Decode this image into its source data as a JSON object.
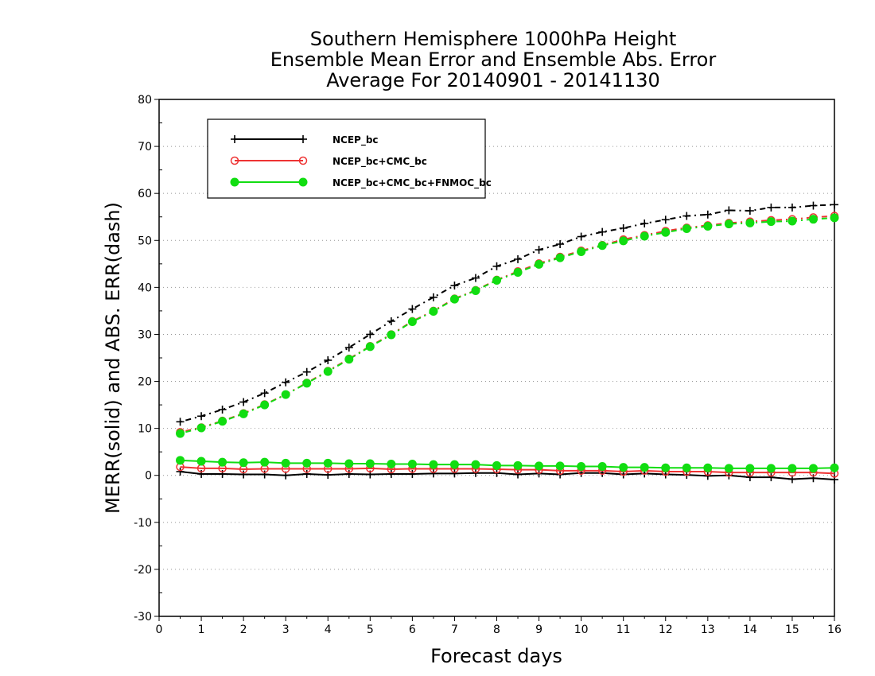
{
  "chart_data": {
    "type": "line",
    "title": [
      "Southern Hemisphere 1000hPa Height",
      "Ensemble Mean Error and Ensemble Abs. Error",
      "Average For 20140901 - 20141130"
    ],
    "xlabel": "Forecast days",
    "ylabel": "MERR(solid) and ABS. ERR(dash)",
    "xlim": [
      0,
      16
    ],
    "ylim": [
      -30,
      80
    ],
    "xticks": [
      0,
      1,
      2,
      3,
      4,
      5,
      6,
      7,
      8,
      9,
      10,
      11,
      12,
      13,
      14,
      15,
      16
    ],
    "yticks": [
      -30,
      -20,
      -10,
      0,
      10,
      20,
      30,
      40,
      50,
      60,
      70,
      80
    ],
    "grid": "horizontal dotted",
    "legend_position": "top-left",
    "x": [
      0.5,
      1,
      1.5,
      2,
      2.5,
      3,
      3.5,
      4,
      4.5,
      5,
      5.5,
      6,
      6.5,
      7,
      7.5,
      8,
      8.5,
      9,
      9.5,
      10,
      10.5,
      11,
      11.5,
      12,
      12.5,
      13,
      13.5,
      14,
      14.5,
      15,
      15.5,
      16
    ],
    "series": [
      {
        "name": "NCEP_bc",
        "color": "#000000",
        "marker": "plus",
        "merr": [
          0.8,
          0.3,
          0.3,
          0.2,
          0.2,
          0.0,
          0.3,
          0.1,
          0.3,
          0.2,
          0.3,
          0.3,
          0.4,
          0.4,
          0.5,
          0.5,
          0.2,
          0.4,
          0.2,
          0.5,
          0.5,
          0.2,
          0.4,
          0.2,
          0.1,
          -0.1,
          0.0,
          -0.4,
          -0.4,
          -0.8,
          -0.6,
          -0.9
        ],
        "abs_err": [
          11.4,
          12.6,
          14.0,
          15.6,
          17.5,
          19.8,
          22.0,
          24.5,
          27.2,
          30.0,
          32.8,
          35.4,
          37.9,
          40.4,
          42.0,
          44.5,
          46.0,
          48.0,
          49.2,
          50.8,
          51.8,
          52.6,
          53.6,
          54.4,
          55.2,
          55.5,
          56.4,
          56.3,
          57.0,
          57.0,
          57.4,
          57.6
        ]
      },
      {
        "name": "NCEP_bc+CMC_bc",
        "color": "#ee3333",
        "marker": "open-circle",
        "merr": [
          1.8,
          1.5,
          1.5,
          1.3,
          1.4,
          1.4,
          1.4,
          1.4,
          1.4,
          1.5,
          1.3,
          1.4,
          1.4,
          1.4,
          1.4,
          1.3,
          1.2,
          1.2,
          1.0,
          1.0,
          1.0,
          0.8,
          1.0,
          0.8,
          0.8,
          0.8,
          0.6,
          0.6,
          0.6,
          0.6,
          0.6,
          0.4
        ],
        "abs_err": [
          9.2,
          10.2,
          11.6,
          13.2,
          15.1,
          17.2,
          19.7,
          22.2,
          24.8,
          27.5,
          30.0,
          32.8,
          35.0,
          37.6,
          39.4,
          41.6,
          43.4,
          45.1,
          46.5,
          47.8,
          49.0,
          50.2,
          51.1,
          52.0,
          52.7,
          53.2,
          53.7,
          54.0,
          54.3,
          54.5,
          54.9,
          55.2
        ]
      },
      {
        "name": "NCEP_bc+CMC_bc+FNMOC_bc",
        "color": "#11dd11",
        "marker": "filled-circle",
        "merr": [
          3.2,
          3.0,
          2.8,
          2.7,
          2.8,
          2.6,
          2.6,
          2.6,
          2.5,
          2.5,
          2.4,
          2.4,
          2.3,
          2.3,
          2.3,
          2.1,
          2.1,
          2.0,
          2.0,
          1.9,
          1.9,
          1.7,
          1.7,
          1.6,
          1.6,
          1.6,
          1.5,
          1.5,
          1.5,
          1.5,
          1.5,
          1.6
        ],
        "abs_err": [
          8.9,
          10.1,
          11.5,
          13.1,
          15.0,
          17.2,
          19.6,
          22.1,
          24.7,
          27.4,
          29.9,
          32.7,
          34.9,
          37.5,
          39.3,
          41.5,
          43.2,
          44.9,
          46.3,
          47.6,
          48.9,
          49.9,
          50.9,
          51.7,
          52.5,
          53.0,
          53.5,
          53.7,
          54.0,
          54.1,
          54.5,
          54.8
        ]
      }
    ]
  }
}
